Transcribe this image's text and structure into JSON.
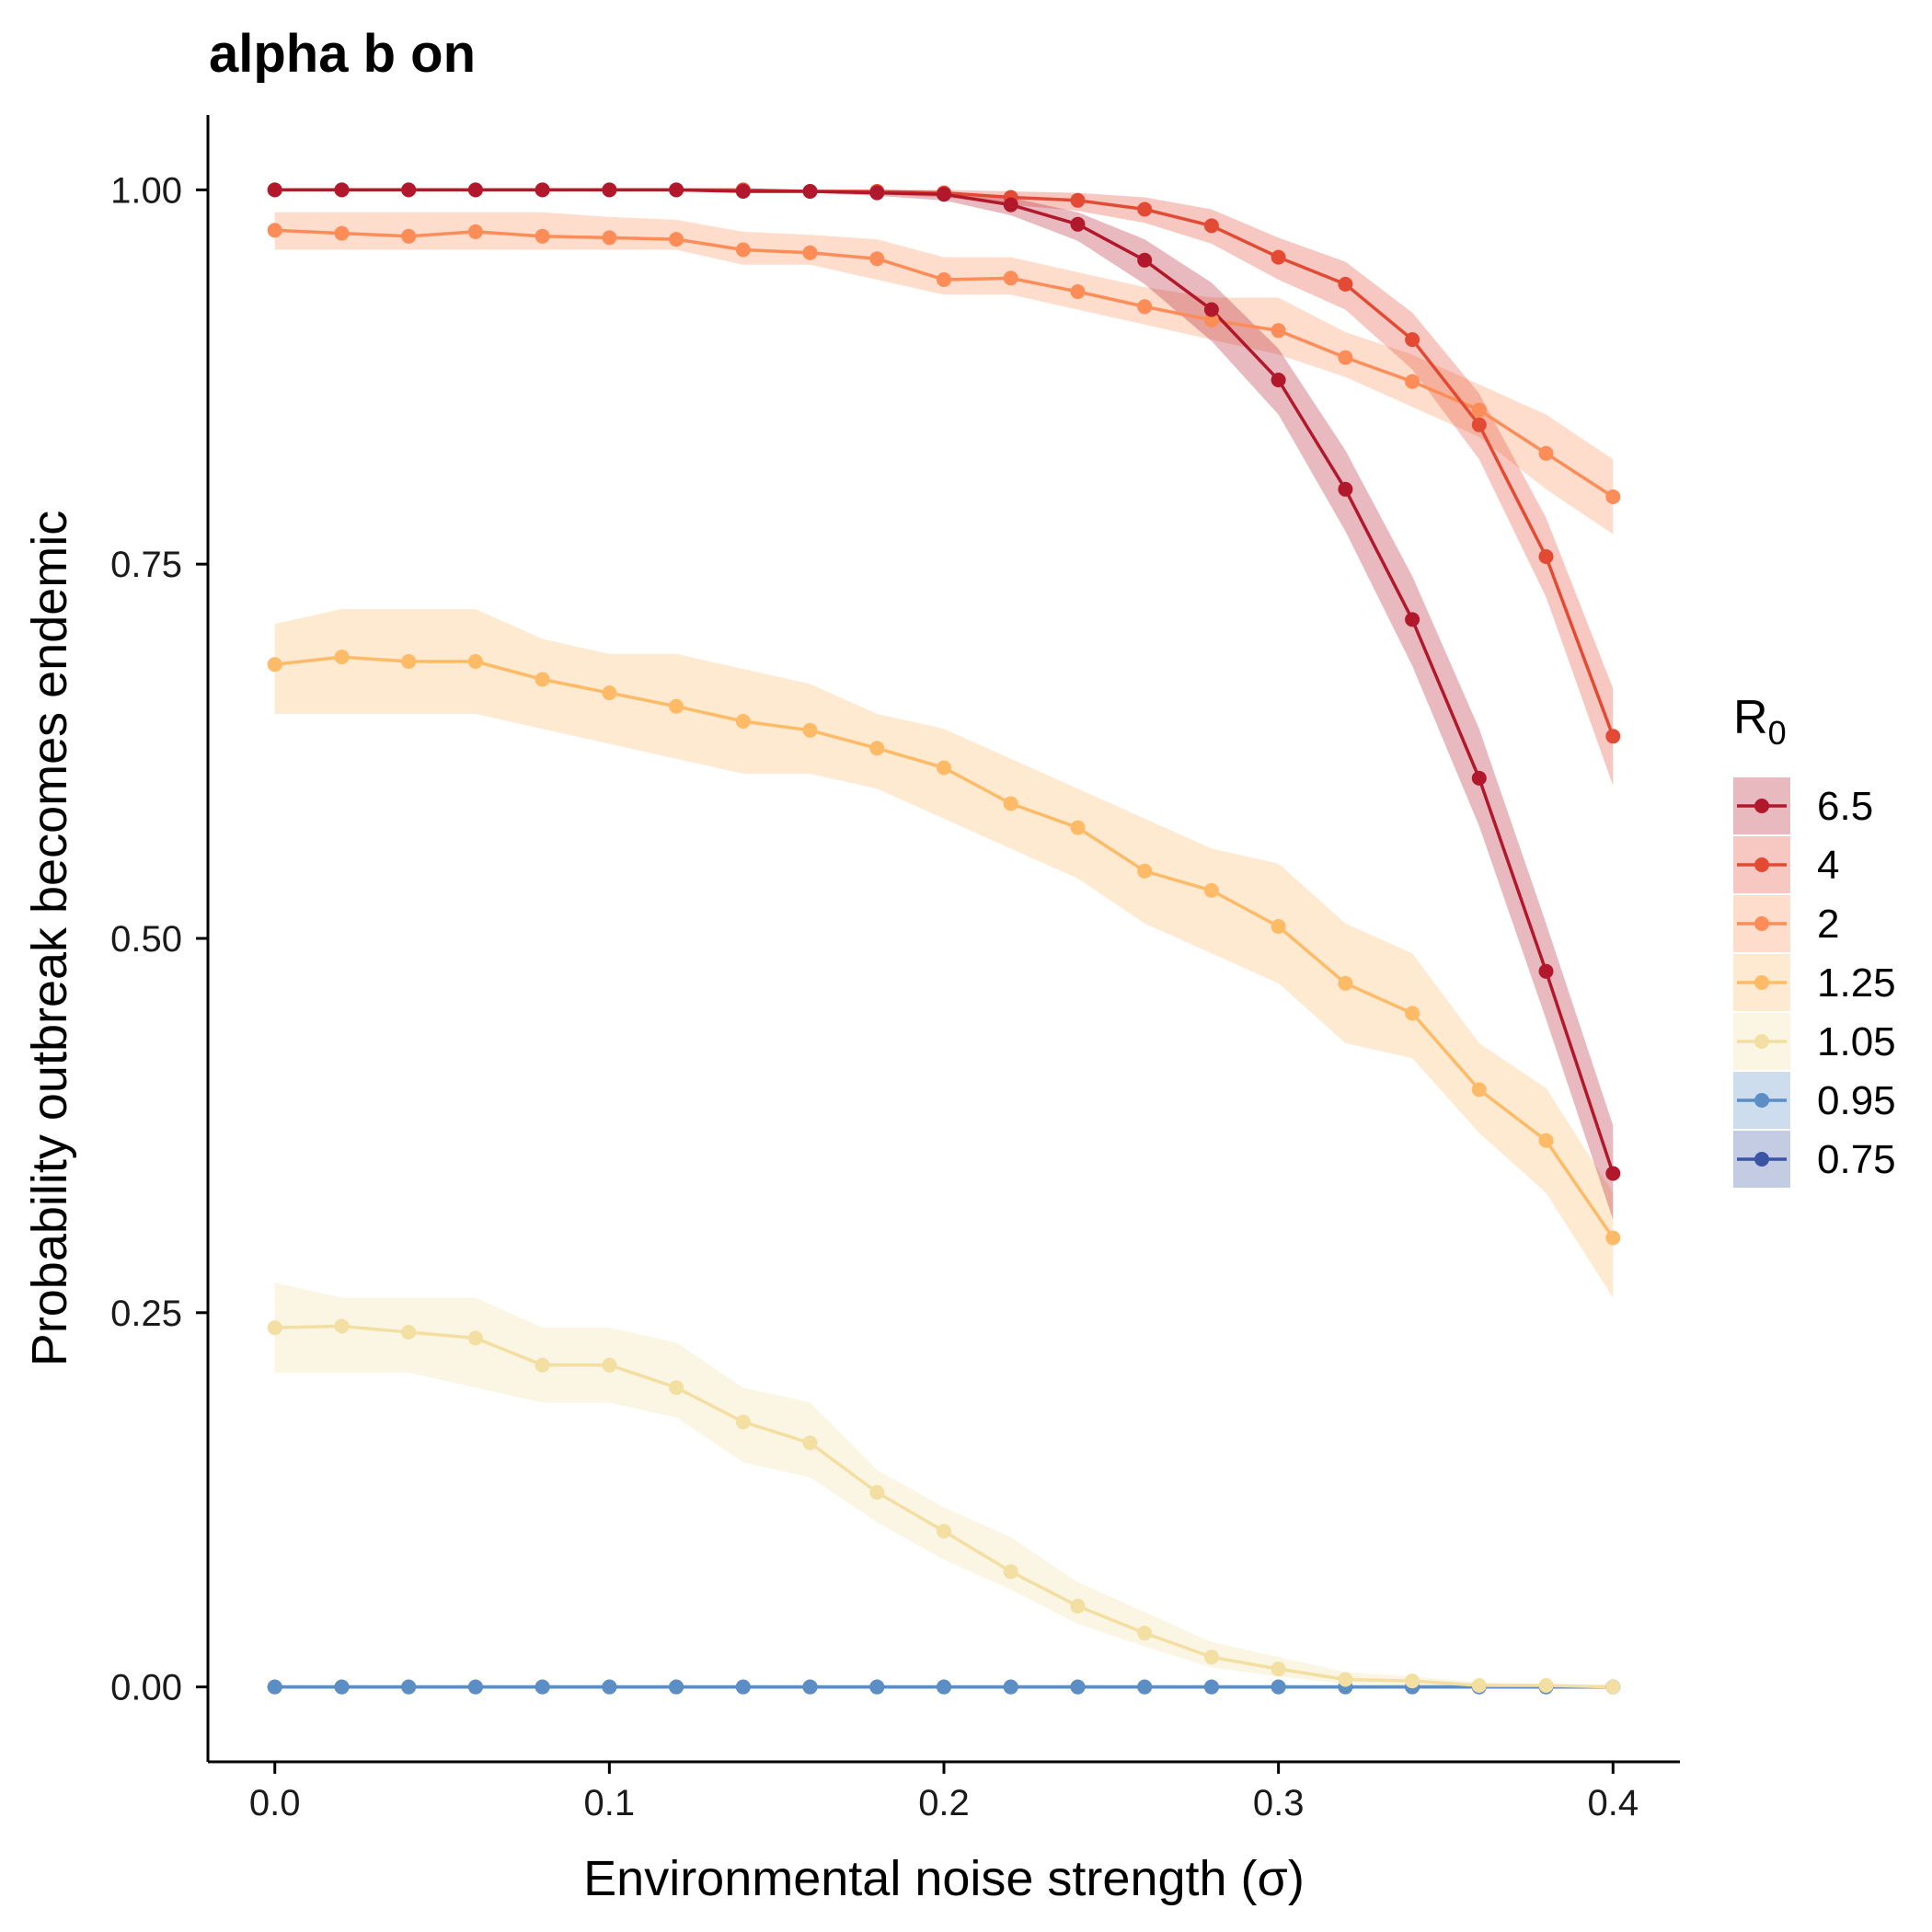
{
  "chart_data": {
    "type": "line",
    "title": "alpha b on",
    "xlabel": "Environmental noise strength (σ)",
    "ylabel": "Probability outbreak becomes endemic",
    "xlim": [
      -0.02,
      0.42
    ],
    "ylim": [
      -0.05,
      1.05
    ],
    "x_ticks": [
      0.0,
      0.1,
      0.2,
      0.3,
      0.4
    ],
    "x_tick_labels": [
      "0.0",
      "0.1",
      "0.2",
      "0.3",
      "0.4"
    ],
    "y_ticks": [
      0.0,
      0.25,
      0.5,
      0.75,
      1.0
    ],
    "y_tick_labels": [
      "0.00",
      "0.25",
      "0.50",
      "0.75",
      "1.00"
    ],
    "grid": false,
    "legend": {
      "title": "R",
      "title_subscript": "0",
      "position": "right"
    },
    "x": [
      0.0,
      0.02,
      0.04,
      0.06,
      0.08,
      0.1,
      0.12,
      0.14,
      0.16,
      0.18,
      0.2,
      0.22,
      0.24,
      0.26,
      0.28,
      0.3,
      0.32,
      0.34,
      0.36,
      0.38,
      0.4
    ],
    "series": [
      {
        "name": "6.5",
        "color": "#b2182b",
        "band_alpha": 0.3,
        "values": [
          1.0,
          1.0,
          1.0,
          1.0,
          1.0,
          1.0,
          1.0,
          0.999,
          0.999,
          0.998,
          0.997,
          0.99,
          0.977,
          0.953,
          0.92,
          0.873,
          0.8,
          0.713,
          0.607,
          0.478,
          0.343
        ],
        "lower": [
          1.0,
          1.0,
          1.0,
          1.0,
          1.0,
          1.0,
          1.0,
          0.998,
          0.998,
          0.996,
          0.993,
          0.983,
          0.966,
          0.937,
          0.899,
          0.85,
          0.772,
          0.682,
          0.575,
          0.446,
          0.312
        ],
        "upper": [
          1.0,
          1.0,
          1.0,
          1.0,
          1.0,
          1.0,
          1.0,
          1.0,
          1.0,
          1.0,
          0.999,
          0.995,
          0.985,
          0.967,
          0.938,
          0.894,
          0.826,
          0.742,
          0.64,
          0.51,
          0.375
        ]
      },
      {
        "name": "4",
        "color": "#e34a33",
        "band_alpha": 0.3,
        "values": [
          1.0,
          1.0,
          1.0,
          1.0,
          1.0,
          1.0,
          1.0,
          1.0,
          0.999,
          0.999,
          0.998,
          0.995,
          0.993,
          0.987,
          0.976,
          0.955,
          0.937,
          0.9,
          0.843,
          0.755,
          0.635
        ],
        "lower": [
          1.0,
          1.0,
          1.0,
          1.0,
          1.0,
          1.0,
          1.0,
          1.0,
          0.998,
          0.997,
          0.995,
          0.99,
          0.986,
          0.978,
          0.964,
          0.94,
          0.92,
          0.88,
          0.82,
          0.728,
          0.602
        ],
        "upper": [
          1.0,
          1.0,
          1.0,
          1.0,
          1.0,
          1.0,
          1.0,
          1.0,
          1.0,
          1.0,
          1.0,
          0.999,
          0.998,
          0.995,
          0.987,
          0.968,
          0.952,
          0.918,
          0.864,
          0.781,
          0.667
        ]
      },
      {
        "name": "2",
        "color": "#fc8d59",
        "band_alpha": 0.3,
        "values": [
          0.973,
          0.971,
          0.969,
          0.972,
          0.969,
          0.968,
          0.967,
          0.96,
          0.958,
          0.954,
          0.94,
          0.941,
          0.932,
          0.922,
          0.913,
          0.906,
          0.888,
          0.872,
          0.853,
          0.824,
          0.795
        ],
        "lower": [
          0.96,
          0.96,
          0.96,
          0.96,
          0.96,
          0.96,
          0.96,
          0.95,
          0.95,
          0.94,
          0.93,
          0.93,
          0.92,
          0.91,
          0.9,
          0.89,
          0.875,
          0.855,
          0.835,
          0.8,
          0.77
        ],
        "upper": [
          0.985,
          0.985,
          0.985,
          0.985,
          0.985,
          0.982,
          0.98,
          0.972,
          0.97,
          0.967,
          0.955,
          0.955,
          0.945,
          0.935,
          0.928,
          0.928,
          0.905,
          0.89,
          0.87,
          0.85,
          0.82
        ]
      },
      {
        "name": "1.25",
        "color": "#fdbb68",
        "band_alpha": 0.3,
        "values": [
          0.683,
          0.688,
          0.685,
          0.685,
          0.673,
          0.664,
          0.655,
          0.645,
          0.639,
          0.627,
          0.614,
          0.59,
          0.574,
          0.545,
          0.532,
          0.508,
          0.47,
          0.45,
          0.399,
          0.365,
          0.3
        ],
        "lower": [
          0.65,
          0.65,
          0.65,
          0.65,
          0.64,
          0.63,
          0.62,
          0.61,
          0.61,
          0.6,
          0.58,
          0.56,
          0.54,
          0.51,
          0.49,
          0.47,
          0.43,
          0.42,
          0.37,
          0.33,
          0.26
        ],
        "upper": [
          0.71,
          0.72,
          0.72,
          0.72,
          0.7,
          0.69,
          0.69,
          0.68,
          0.67,
          0.65,
          0.64,
          0.62,
          0.6,
          0.58,
          0.56,
          0.55,
          0.51,
          0.49,
          0.43,
          0.4,
          0.33
        ]
      },
      {
        "name": "1.05",
        "color": "#f3dfa2",
        "band_alpha": 0.3,
        "values": [
          0.24,
          0.241,
          0.237,
          0.233,
          0.215,
          0.215,
          0.2,
          0.177,
          0.163,
          0.13,
          0.104,
          0.077,
          0.054,
          0.036,
          0.02,
          0.012,
          0.005,
          0.004,
          0.001,
          0.001,
          0.0
        ],
        "lower": [
          0.21,
          0.21,
          0.21,
          0.2,
          0.19,
          0.19,
          0.18,
          0.15,
          0.14,
          0.11,
          0.085,
          0.065,
          0.042,
          0.027,
          0.013,
          0.007,
          0.002,
          0.001,
          0.0,
          0.0,
          0.0
        ],
        "upper": [
          0.27,
          0.26,
          0.26,
          0.26,
          0.24,
          0.24,
          0.23,
          0.2,
          0.19,
          0.145,
          0.12,
          0.1,
          0.07,
          0.05,
          0.03,
          0.02,
          0.01,
          0.007,
          0.003,
          0.002,
          0.001
        ]
      },
      {
        "name": "0.95",
        "color": "#5b8ec4",
        "band_alpha": 0.3,
        "values": [
          0.0,
          0.0,
          0.0,
          0.0,
          0.0,
          0.0,
          0.0,
          0.0,
          0.0,
          0.0,
          0.0,
          0.0,
          0.0,
          0.0,
          0.0,
          0.0,
          0.0,
          0.0,
          0.0,
          0.0,
          0.0
        ],
        "lower": [
          0.0,
          0.0,
          0.0,
          0.0,
          0.0,
          0.0,
          0.0,
          0.0,
          0.0,
          0.0,
          0.0,
          0.0,
          0.0,
          0.0,
          0.0,
          0.0,
          0.0,
          0.0,
          0.0,
          0.0,
          0.0
        ],
        "upper": [
          0.0,
          0.0,
          0.0,
          0.0,
          0.0,
          0.0,
          0.0,
          0.0,
          0.0,
          0.0,
          0.0,
          0.0,
          0.0,
          0.0,
          0.0,
          0.0,
          0.0,
          0.0,
          0.0,
          0.0,
          0.0
        ]
      },
      {
        "name": "0.75",
        "color": "#3a55a4",
        "band_alpha": 0.3,
        "values": [
          0.0,
          0.0,
          0.0,
          0.0,
          0.0,
          0.0,
          0.0,
          0.0,
          0.0,
          0.0,
          0.0,
          0.0,
          0.0,
          0.0,
          0.0,
          0.0,
          0.0,
          0.0,
          0.0,
          0.0,
          0.0
        ],
        "lower": [
          0.0,
          0.0,
          0.0,
          0.0,
          0.0,
          0.0,
          0.0,
          0.0,
          0.0,
          0.0,
          0.0,
          0.0,
          0.0,
          0.0,
          0.0,
          0.0,
          0.0,
          0.0,
          0.0,
          0.0,
          0.0
        ],
        "upper": [
          0.0,
          0.0,
          0.0,
          0.0,
          0.0,
          0.0,
          0.0,
          0.0,
          0.0,
          0.0,
          0.0,
          0.0,
          0.0,
          0.0,
          0.0,
          0.0,
          0.0,
          0.0,
          0.0,
          0.0,
          0.0
        ]
      }
    ],
    "draw_order": [
      "0.75",
      "0.95",
      "1.05",
      "1.25",
      "2",
      "4",
      "6.5"
    ]
  }
}
